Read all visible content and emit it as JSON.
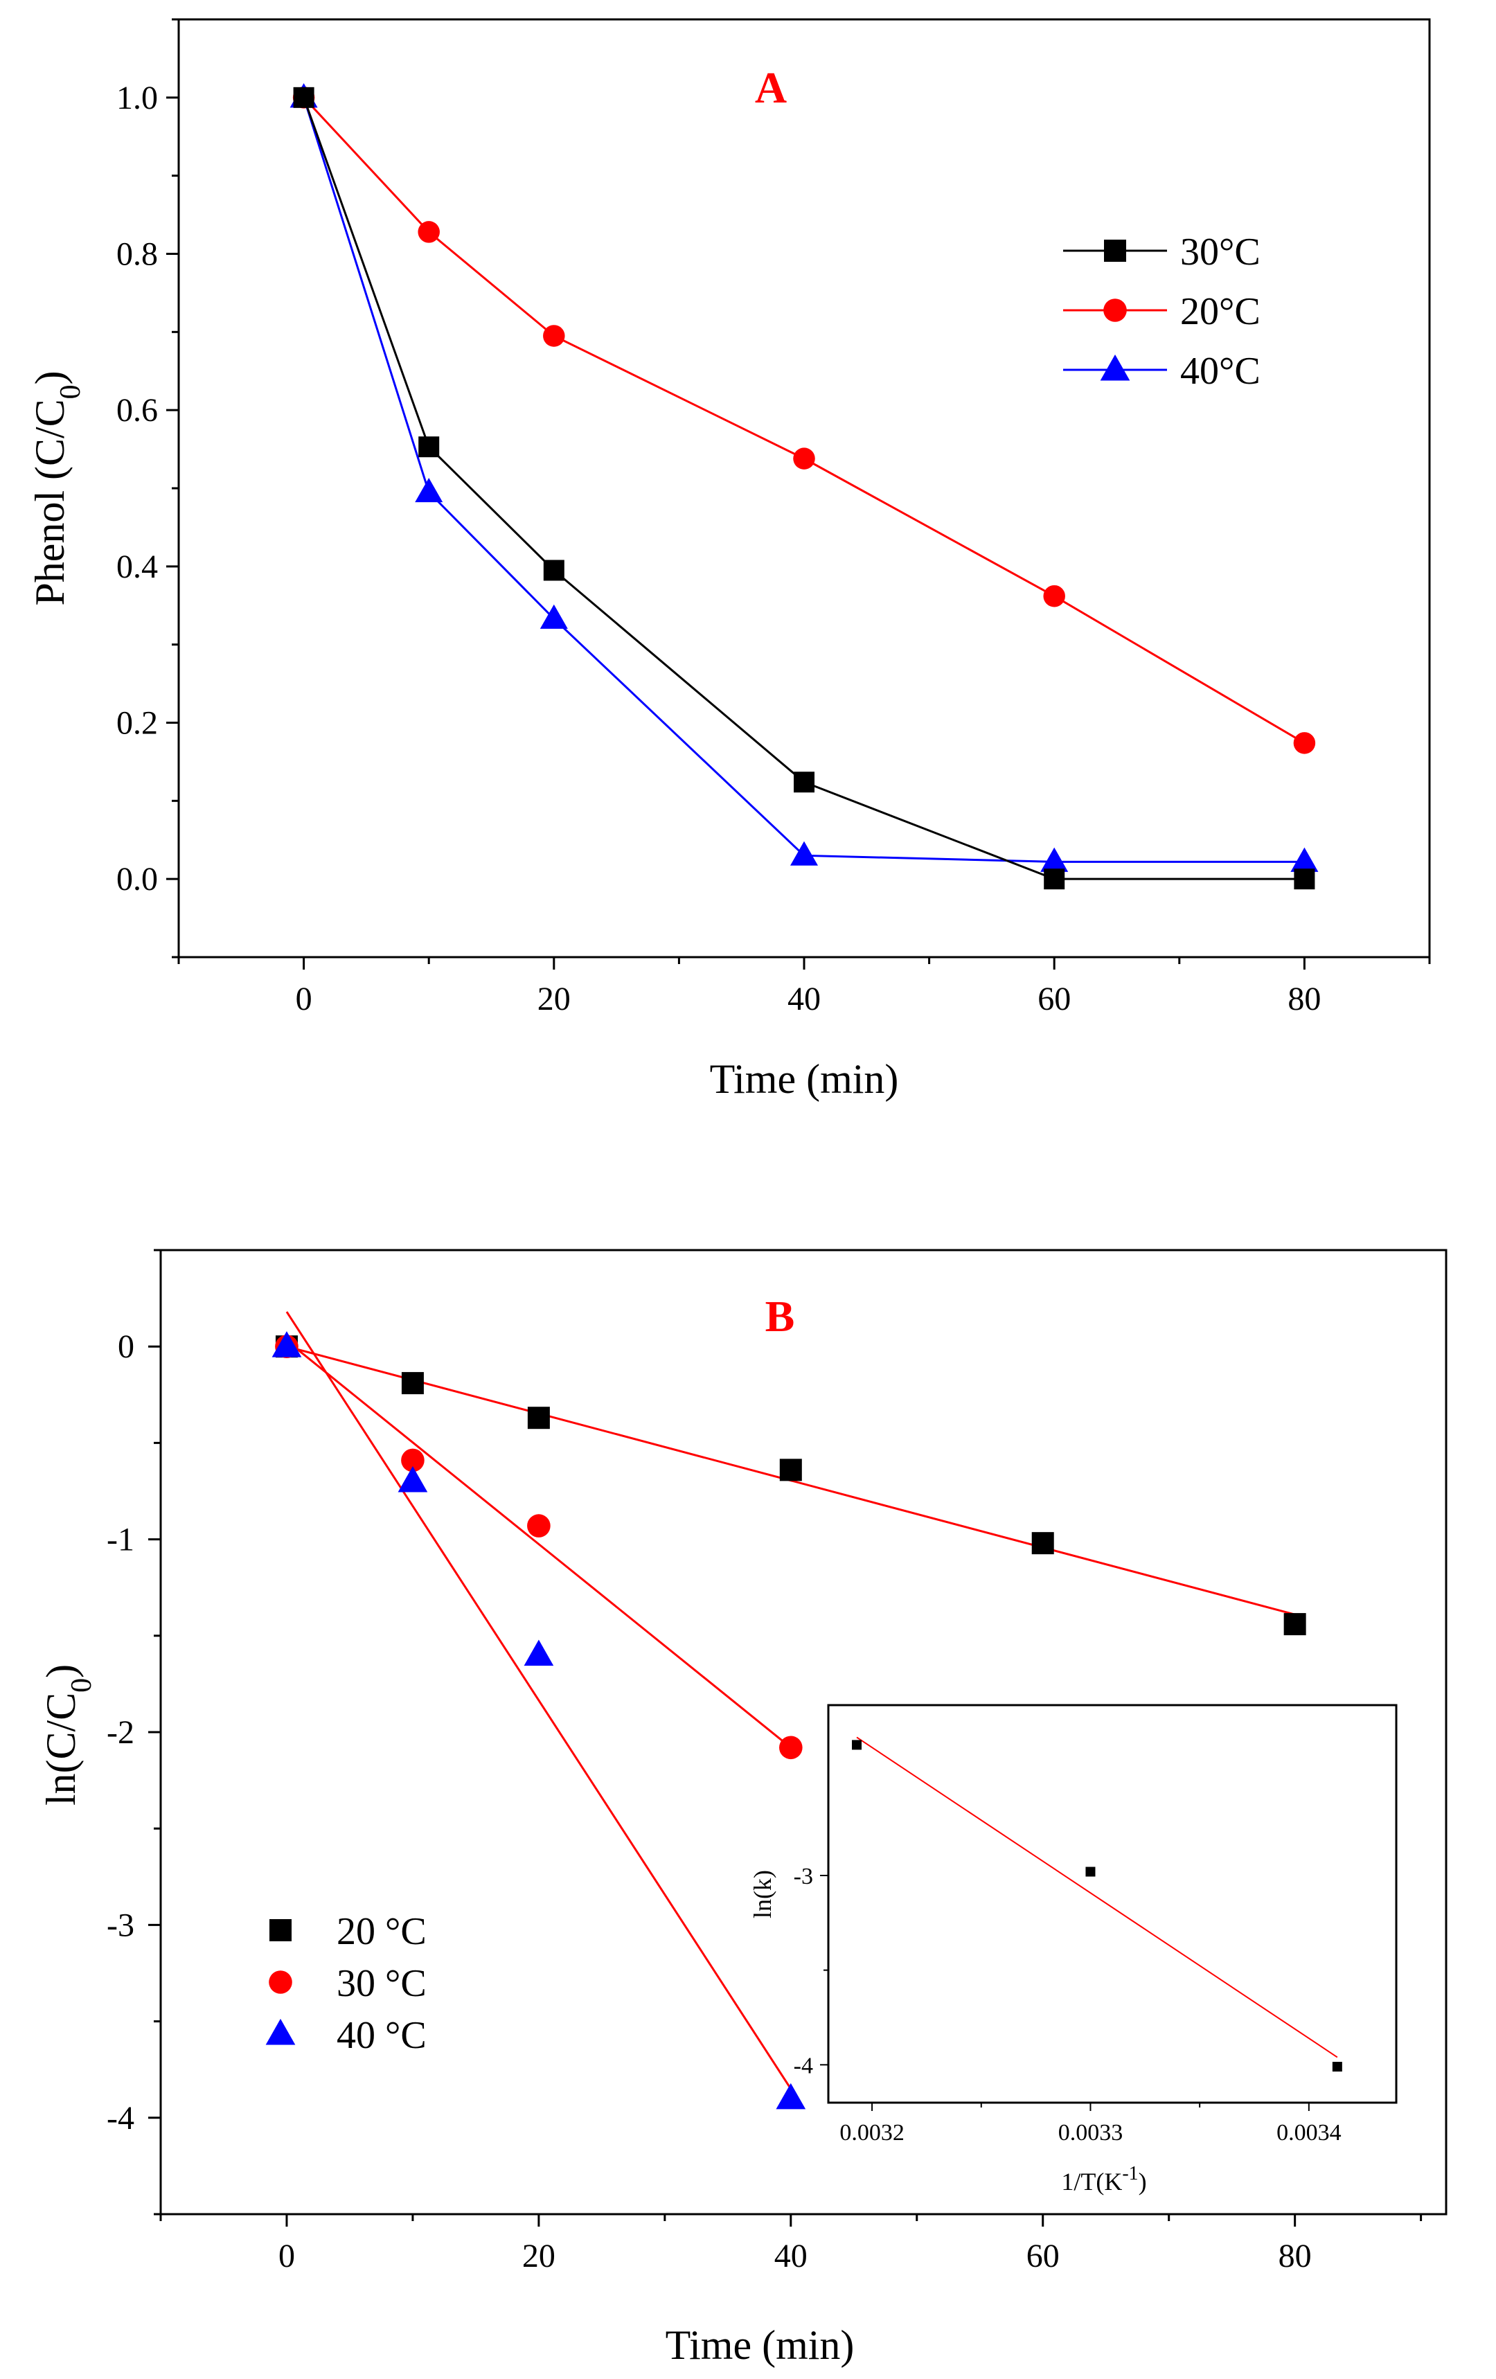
{
  "chart_data": [
    {
      "type": "line",
      "panel_label": "A",
      "xlabel": "Time (min)",
      "ylabel": "Phenol (C/C0)",
      "xlim": [
        -10,
        90
      ],
      "ylim": [
        -0.1,
        1.1
      ],
      "xticks": [
        0,
        20,
        40,
        60,
        80
      ],
      "yticks": [
        0.0,
        0.2,
        0.4,
        0.6,
        0.8,
        1.0
      ],
      "legend_position": "top-right",
      "series": [
        {
          "name": "30°C",
          "marker": "square",
          "color": "#000000",
          "x": [
            0,
            10,
            20,
            40,
            60,
            80
          ],
          "y": [
            1.0,
            0.553,
            0.395,
            0.124,
            0.0,
            0.0
          ]
        },
        {
          "name": "20°C",
          "marker": "circle",
          "color": "#ff0000",
          "x": [
            0,
            10,
            20,
            40,
            60,
            80
          ],
          "y": [
            1.0,
            0.828,
            0.695,
            0.538,
            0.362,
            0.174
          ]
        },
        {
          "name": "40°C",
          "marker": "triangle",
          "color": "#0000ff",
          "x": [
            0,
            10,
            20,
            40,
            60,
            80
          ],
          "y": [
            1.0,
            0.495,
            0.333,
            0.03,
            0.022,
            0.022
          ]
        }
      ]
    },
    {
      "type": "scatter",
      "panel_label": "B",
      "xlabel": "Time (min)",
      "ylabel": "ln(C/C0)",
      "xlim": [
        -10,
        92
      ],
      "ylim": [
        -4.5,
        0.5
      ],
      "xticks": [
        0,
        20,
        40,
        60,
        80
      ],
      "yticks": [
        0,
        -1,
        -2,
        -3,
        -4
      ],
      "legend_position": "bottom-left",
      "series": [
        {
          "name": "20 °C",
          "marker": "square",
          "color": "#000000",
          "x": [
            0,
            10,
            20,
            40,
            60,
            80
          ],
          "y": [
            0,
            -0.19,
            -0.37,
            -0.64,
            -1.02,
            -1.44
          ],
          "fit": {
            "x": [
              0,
              80
            ],
            "y": [
              0.0,
              -1.39
            ],
            "color": "#ff0000"
          }
        },
        {
          "name": "30 °C",
          "marker": "circle",
          "color": "#ff0000",
          "x": [
            0,
            10,
            20,
            40
          ],
          "y": [
            0,
            -0.59,
            -0.93,
            -2.08
          ],
          "fit": {
            "x": [
              0,
              40
            ],
            "y": [
              0.03,
              -2.08
            ],
            "color": "#ff0000"
          }
        },
        {
          "name": "40 °C",
          "marker": "triangle",
          "color": "#0000ff",
          "x": [
            0,
            10,
            20,
            40
          ],
          "y": [
            0,
            -0.7,
            -1.6,
            -3.9
          ],
          "fit": {
            "x": [
              0,
              40
            ],
            "y": [
              0.18,
              -3.85
            ],
            "color": "#ff0000"
          }
        }
      ]
    },
    {
      "type": "scatter",
      "panel_label": "B-inset",
      "xlabel": "1/T(K",
      "xlabel_sup": "-1",
      "xlabel_close": ")",
      "ylabel": "ln(k)",
      "xlim": [
        0.00318,
        0.00344
      ],
      "ylim": [
        -4.2,
        -2.1
      ],
      "xticks": [
        "0.0032",
        "0.0033",
        "0.0034"
      ],
      "xtick_values": [
        0.0032,
        0.0033,
        0.0034
      ],
      "yticks": [
        -3,
        -4
      ],
      "series": [
        {
          "name": "ln(k)",
          "marker": "square",
          "color": "#000000",
          "x": [
            0.003193,
            0.0033,
            0.003413
          ],
          "y": [
            -2.31,
            -2.98,
            -4.01
          ],
          "fit": {
            "x": [
              0.003193,
              0.003413
            ],
            "y": [
              -2.27,
              -3.96
            ],
            "color": "#ff0000"
          }
        }
      ]
    }
  ]
}
